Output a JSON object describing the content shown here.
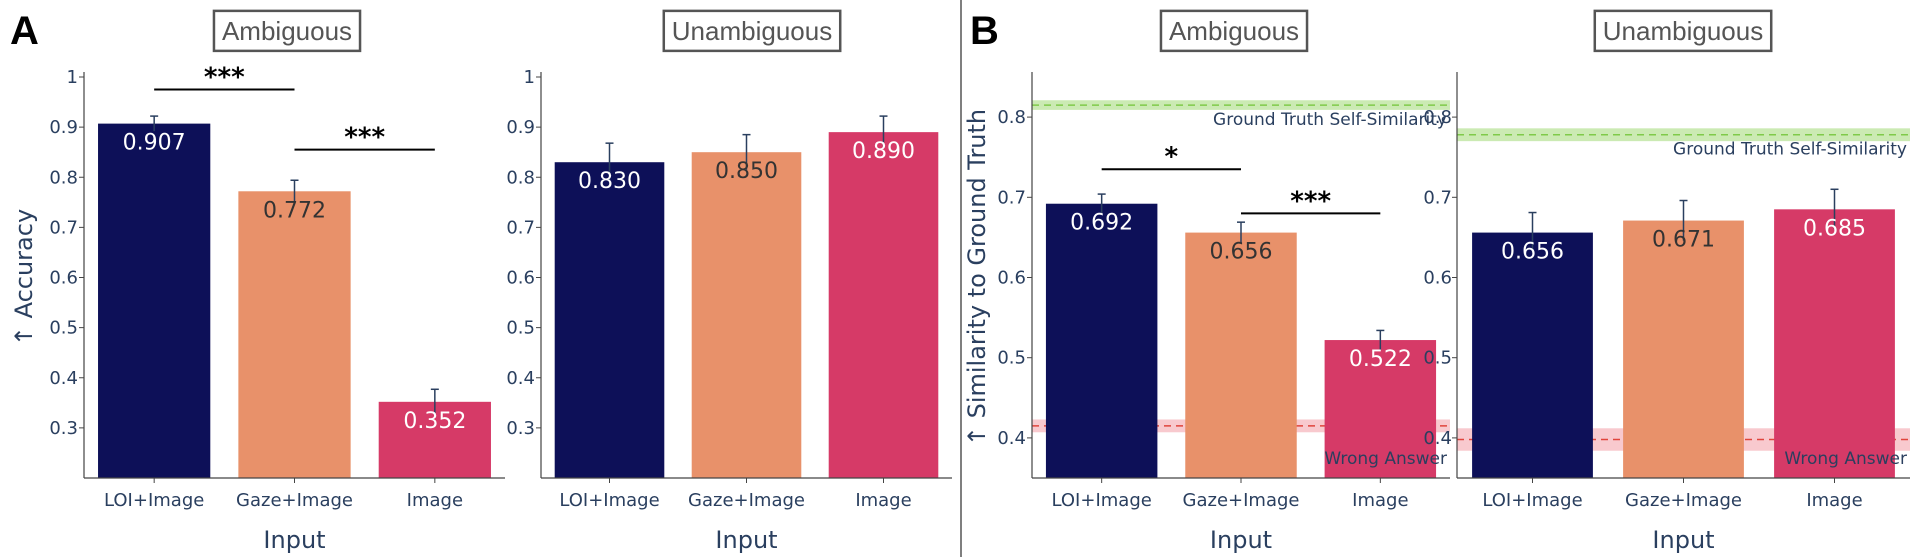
{
  "panels": [
    {
      "letter": "A"
    },
    {
      "letter": "B"
    }
  ],
  "colors": {
    "LOI+Image": "#0d1058",
    "Gaze+Image": "#e8916a",
    "Image": "#d63a67",
    "axis": "#2a3f5f",
    "gt_band": "#b9e39a",
    "gt_line": "#7fca4a",
    "wrong_band": "#f6b7bd",
    "wrong_line": "#e0443c"
  },
  "chart_data": [
    {
      "type": "bar",
      "title": "Ambiguous",
      "panel": "A",
      "categories": [
        "LOI+Image",
        "Gaze+Image",
        "Image"
      ],
      "values": [
        0.907,
        0.772,
        0.352
      ],
      "value_labels": [
        "0.907",
        "0.772",
        "0.352"
      ],
      "error": [
        0.015,
        0.022,
        0.025
      ],
      "xlabel": "Input",
      "ylabel": "↑ Accuracy",
      "ylim": [
        0.2,
        1.0
      ],
      "yticks": [
        0.3,
        0.4,
        0.5,
        0.6,
        0.7,
        0.8,
        0.9,
        1.0
      ],
      "ytick_labels": [
        "0.3",
        "0.4",
        "0.5",
        "0.6",
        "0.7",
        "0.8",
        "0.9",
        "1"
      ],
      "significance": [
        {
          "from": 0,
          "to": 1,
          "label": "***",
          "y": 0.975
        },
        {
          "from": 1,
          "to": 2,
          "label": "***",
          "y": 0.855
        }
      ],
      "reference_lines": []
    },
    {
      "type": "bar",
      "title": "Unambiguous",
      "panel": "A",
      "categories": [
        "LOI+Image",
        "Gaze+Image",
        "Image"
      ],
      "values": [
        0.83,
        0.85,
        0.89
      ],
      "value_labels": [
        "0.830",
        "0.850",
        "0.890"
      ],
      "error": [
        0.038,
        0.035,
        0.032
      ],
      "xlabel": "Input",
      "ylabel": "",
      "ylim": [
        0.2,
        1.0
      ],
      "yticks": [
        0.3,
        0.4,
        0.5,
        0.6,
        0.7,
        0.8,
        0.9,
        1.0
      ],
      "ytick_labels": [
        "0.3",
        "0.4",
        "0.5",
        "0.6",
        "0.7",
        "0.8",
        "0.9",
        "1"
      ],
      "significance": [],
      "reference_lines": []
    },
    {
      "type": "bar",
      "title": "Ambiguous",
      "panel": "B",
      "categories": [
        "LOI+Image",
        "Gaze+Image",
        "Image"
      ],
      "values": [
        0.692,
        0.656,
        0.522
      ],
      "value_labels": [
        "0.692",
        "0.656",
        "0.522"
      ],
      "error": [
        0.012,
        0.013,
        0.012
      ],
      "xlabel": "Input",
      "ylabel": "↑ Similarity to Ground Truth",
      "ylim": [
        0.35,
        0.85
      ],
      "yticks": [
        0.4,
        0.5,
        0.6,
        0.7,
        0.8
      ],
      "ytick_labels": [
        "0.4",
        "0.5",
        "0.6",
        "0.7",
        "0.8"
      ],
      "significance": [
        {
          "from": 0,
          "to": 1,
          "label": "*",
          "y": 0.735
        },
        {
          "from": 1,
          "to": 2,
          "label": "***",
          "y": 0.68
        }
      ],
      "reference_lines": [
        {
          "label": "Ground Truth Self-Similarity",
          "value": 0.815,
          "band": 0.006,
          "kind": "gt"
        },
        {
          "label": "Wrong Answer",
          "value": 0.415,
          "band": 0.008,
          "kind": "wrong"
        }
      ]
    },
    {
      "type": "bar",
      "title": "Unambiguous",
      "panel": "B",
      "categories": [
        "LOI+Image",
        "Gaze+Image",
        "Image"
      ],
      "values": [
        0.656,
        0.671,
        0.685
      ],
      "value_labels": [
        "0.656",
        "0.671",
        "0.685"
      ],
      "error": [
        0.025,
        0.025,
        0.025
      ],
      "xlabel": "Input",
      "ylabel": "",
      "ylim": [
        0.35,
        0.85
      ],
      "yticks": [
        0.4,
        0.5,
        0.6,
        0.7,
        0.8
      ],
      "ytick_labels": [
        "0.4",
        "0.5",
        "0.6",
        "0.7",
        "0.8"
      ],
      "significance": [],
      "reference_lines": [
        {
          "label": "Ground Truth Self-Similarity",
          "value": 0.778,
          "band": 0.008,
          "kind": "gt"
        },
        {
          "label": "Wrong Answer",
          "value": 0.398,
          "band": 0.014,
          "kind": "wrong"
        }
      ]
    }
  ]
}
